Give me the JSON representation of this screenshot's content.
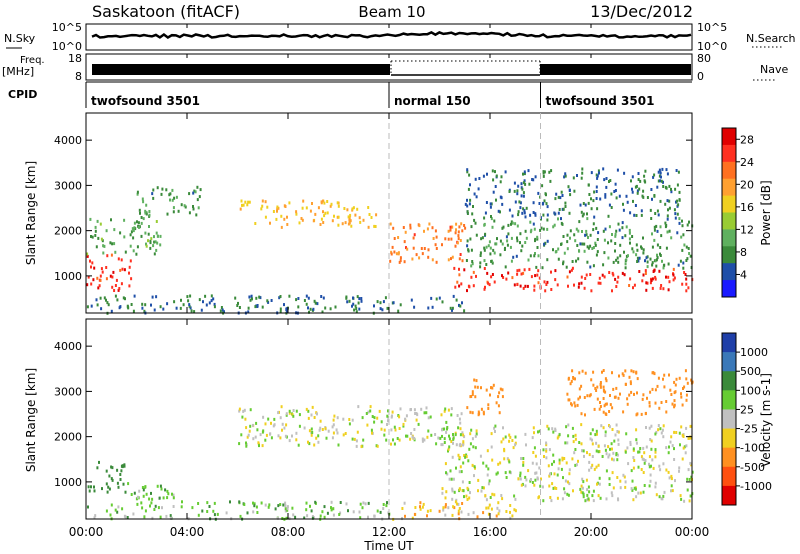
{
  "header": {
    "site": "Saskatoon (fitACF)",
    "beam": "Beam 10",
    "date": "13/Dec/2012"
  },
  "strips": {
    "nsky": {
      "label": "N.Sky",
      "ticks": [
        "10^5",
        "10^0"
      ],
      "right_label": "N.Search",
      "right_ticks": [
        "10^5",
        "10^0"
      ]
    },
    "freq": {
      "label_line1": "Freq.",
      "label_line2": "[MHz]",
      "ticks": [
        "18",
        "8"
      ],
      "right_label": "Nave",
      "right_ticks": [
        "80",
        "0"
      ]
    },
    "cpid": {
      "label": "CPID",
      "segments": [
        {
          "name": "twofsound 3501",
          "start_hour": 0
        },
        {
          "name": "normal 150",
          "start_hour": 12
        },
        {
          "name": "twofsound 3501",
          "start_hour": 18
        }
      ]
    }
  },
  "x_axis": {
    "label": "Time UT",
    "range_hours": [
      0,
      24
    ],
    "ticks": [
      {
        "hour": 0,
        "label": "00:00"
      },
      {
        "hour": 4,
        "label": "04:00"
      },
      {
        "hour": 8,
        "label": "08:00"
      },
      {
        "hour": 12,
        "label": "12:00"
      },
      {
        "hour": 16,
        "label": "16:00"
      },
      {
        "hour": 20,
        "label": "20:00"
      },
      {
        "hour": 24,
        "label": "00:00"
      }
    ]
  },
  "chart_data": [
    {
      "type": "heatmap",
      "quantity": "Power",
      "ylabel": "Slant Range [km]",
      "ylim": [
        180,
        4600
      ],
      "yticks": [
        1000,
        2000,
        3000,
        4000
      ],
      "colorbar_label": "Power [dB]",
      "colorbar_ticks": [
        "4",
        "8",
        "12",
        "16",
        "20",
        "24",
        "28"
      ],
      "colorbar_range": [
        0,
        30
      ],
      "colors": [
        "#1a1aff",
        "#1f4fa8",
        "#3a8a3a",
        "#5fb05f",
        "#99cc33",
        "#f0d020",
        "#ffa030",
        "#ff7020",
        "#ff3020",
        "#e00000"
      ],
      "features": [
        {
          "start_hour": 0.0,
          "end_hour": 1.8,
          "range_km": [
            700,
            1500
          ],
          "value": 26
        },
        {
          "start_hour": 0.0,
          "end_hour": 3.0,
          "range_km": [
            1500,
            2300
          ],
          "value": 10
        },
        {
          "start_hour": 2.0,
          "end_hour": 4.5,
          "range_km": [
            2300,
            3000
          ],
          "value": 8
        },
        {
          "start_hour": 6.0,
          "end_hour": 11.5,
          "range_km": [
            2100,
            2700
          ],
          "value": 18
        },
        {
          "start_hour": 12.0,
          "end_hour": 15.0,
          "range_km": [
            1300,
            2200
          ],
          "value": 22
        },
        {
          "start_hour": 14.5,
          "end_hour": 24.0,
          "range_km": [
            700,
            1200
          ],
          "value": 26
        },
        {
          "start_hour": 15.0,
          "end_hour": 24.0,
          "range_km": [
            1200,
            2300
          ],
          "value": 8
        },
        {
          "start_hour": 15.0,
          "end_hour": 23.5,
          "range_km": [
            2300,
            3400
          ],
          "value": 6
        },
        {
          "start_hour": 0.0,
          "end_hour": 15.0,
          "range_km": [
            200,
            600
          ],
          "value": 6
        }
      ]
    },
    {
      "type": "heatmap",
      "quantity": "Velocity",
      "ylabel": "Slant Range [km]",
      "ylim": [
        180,
        4600
      ],
      "yticks": [
        1000,
        2000,
        3000,
        4000
      ],
      "colorbar_label": "Velocity [m s-1]",
      "colorbar_ticks": [
        "1000",
        "500",
        "100",
        "25",
        "-25",
        "-100",
        "-500",
        "-1000"
      ],
      "colorbar_levels": [
        1000,
        500,
        100,
        25,
        -25,
        -100,
        -500,
        -1000
      ],
      "colors": [
        "#1f3fa8",
        "#3a78b8",
        "#3a8a3a",
        "#66cc33",
        "#c0c0c0",
        "#f0d020",
        "#ff9020",
        "#ff5010",
        "#e00000"
      ],
      "features": [
        {
          "start_hour": 0.0,
          "end_hour": 1.5,
          "range_km": [
            800,
            1500
          ],
          "value": 250
        },
        {
          "start_hour": 1.5,
          "end_hour": 3.5,
          "range_km": [
            600,
            1000
          ],
          "value": 60
        },
        {
          "start_hour": 6.0,
          "end_hour": 15.0,
          "range_km": [
            1800,
            2700
          ],
          "value": 0
        },
        {
          "start_hour": 14.0,
          "end_hour": 24.0,
          "range_km": [
            600,
            2300
          ],
          "value": 0
        },
        {
          "start_hour": 0.0,
          "end_hour": 12.0,
          "range_km": [
            200,
            600
          ],
          "value": 60
        },
        {
          "start_hour": 12.0,
          "end_hour": 17.0,
          "range_km": [
            200,
            600
          ],
          "value": -60
        },
        {
          "start_hour": 15.0,
          "end_hour": 16.5,
          "range_km": [
            2500,
            3300
          ],
          "value": -300
        },
        {
          "start_hour": 19.0,
          "end_hour": 24.0,
          "range_km": [
            2500,
            3500
          ],
          "value": -200
        }
      ]
    }
  ]
}
